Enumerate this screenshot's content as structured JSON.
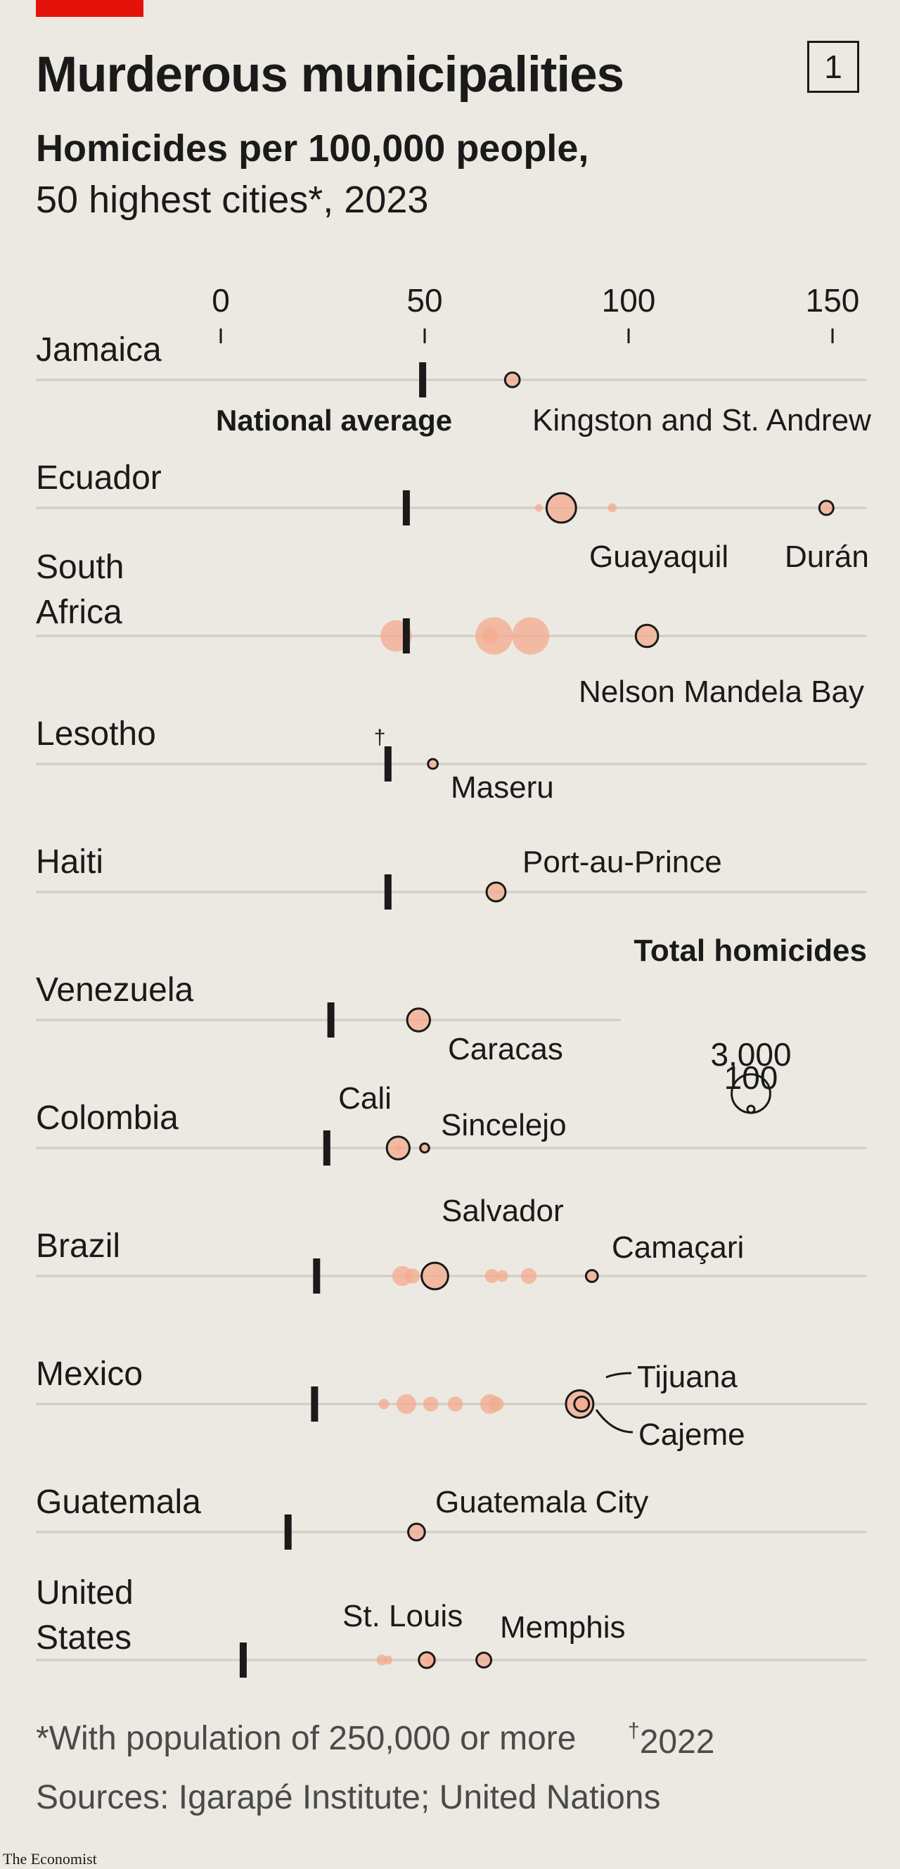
{
  "header": {
    "title": "Murderous municipalities",
    "chart_number": "1",
    "subtitle_bold": "Homicides per 100,000 people,",
    "subtitle_regular": "50 highest cities*, 2023"
  },
  "footer": {
    "footnote": "*With population of 250,000 or more",
    "footnote2_mark": "†",
    "footnote2_text": "2022",
    "sources": "Sources: Igarapé Institute; United Nations",
    "logo": "The Economist"
  },
  "colors": {
    "bubble_fill": "#f4a98e",
    "bubble_stroke": "#1a1a1a",
    "axis_line": "#cfcdc6",
    "national_avg": "#1a1a1a",
    "accent": "#e3120b"
  },
  "chart_data": {
    "type": "scatter",
    "encoding": "bubble size = total homicides; x = homicides per 100,000 people",
    "x_ticks": [
      "0",
      "50",
      "100",
      "150"
    ],
    "xlim": [
      0,
      160
    ],
    "national_average_label": "National average",
    "size_legend": {
      "title": "Total homicides",
      "values": [
        {
          "label": "3,000",
          "value": 3000
        },
        {
          "label": "100",
          "value": 100
        }
      ]
    },
    "countries": [
      {
        "name": "Jamaica",
        "national_avg": 49.5,
        "cities": [
          {
            "x": 71.5,
            "size": 430,
            "highlight": true,
            "label": "Kingston and St. Andrew"
          }
        ]
      },
      {
        "name": "Ecuador",
        "national_avg": 45.5,
        "cities": [
          {
            "x": 78,
            "size": 120
          },
          {
            "x": 96,
            "size": 160
          },
          {
            "x": 83.5,
            "size": 1750,
            "highlight": true,
            "label": "Guayaquil"
          },
          {
            "x": 148.5,
            "size": 400,
            "highlight": true,
            "label": "Durán"
          }
        ]
      },
      {
        "name": "South Africa",
        "national_avg": 45.5,
        "cities": [
          {
            "x": 43,
            "size": 2000
          },
          {
            "x": 67,
            "size": 2800
          },
          {
            "x": 76,
            "size": 2800
          },
          {
            "x": 66,
            "size": 550
          },
          {
            "x": 104.5,
            "size": 1000,
            "highlight": true,
            "label": "Nelson Mandela Bay"
          }
        ]
      },
      {
        "name": "Lesotho",
        "national_avg": 41,
        "national_avg_note": "†",
        "cities": [
          {
            "x": 52,
            "size": 190,
            "highlight": true,
            "label": "Maseru"
          }
        ]
      },
      {
        "name": "Haiti",
        "national_avg": 41,
        "cities": [
          {
            "x": 67.5,
            "size": 720,
            "highlight": true,
            "label": "Port-au-Prince"
          }
        ]
      },
      {
        "name": "Venezuela",
        "national_avg": 27,
        "cities": [
          {
            "x": 48.5,
            "size": 1050,
            "highlight": true,
            "label": "Caracas"
          }
        ]
      },
      {
        "name": "Colombia",
        "national_avg": 26,
        "cities": [
          {
            "x": 43.5,
            "size": 1040,
            "highlight": true,
            "label": "Cali"
          },
          {
            "x": 43.5,
            "size": 90
          },
          {
            "x": 50,
            "size": 160,
            "highlight": true,
            "label": "Sincelejo"
          }
        ]
      },
      {
        "name": "Brazil",
        "national_avg": 23.5,
        "cities": [
          {
            "x": 44.5,
            "size": 800
          },
          {
            "x": 47,
            "size": 460
          },
          {
            "x": 66.5,
            "size": 400
          },
          {
            "x": 69,
            "size": 280
          },
          {
            "x": 75.5,
            "size": 500
          },
          {
            "x": 52.5,
            "size": 1420,
            "highlight": true,
            "label": "Salvador"
          },
          {
            "x": 91,
            "size": 280,
            "highlight": true,
            "label": "Camaçari"
          }
        ]
      },
      {
        "name": "Mexico",
        "national_avg": 23,
        "cities": [
          {
            "x": 40,
            "size": 220
          },
          {
            "x": 45.5,
            "size": 780
          },
          {
            "x": 51.5,
            "size": 460
          },
          {
            "x": 57.5,
            "size": 460
          },
          {
            "x": 66,
            "size": 780
          },
          {
            "x": 67.5,
            "size": 460
          },
          {
            "x": 88,
            "size": 1520,
            "highlight": true,
            "label": "Tijuana"
          },
          {
            "x": 88.5,
            "size": 440,
            "highlight": true,
            "label": "Cajeme"
          }
        ]
      },
      {
        "name": "Guatemala",
        "national_avg": 16.5,
        "cities": [
          {
            "x": 48,
            "size": 560,
            "highlight": true,
            "label": "Guatemala City"
          }
        ]
      },
      {
        "name": "United States",
        "national_avg": 5.5,
        "cities": [
          {
            "x": 39.5,
            "size": 230
          },
          {
            "x": 41,
            "size": 160
          },
          {
            "x": 51.5,
            "size": 290
          },
          {
            "x": 50.5,
            "size": 500,
            "highlight": true,
            "label": "St. Louis"
          },
          {
            "x": 64.5,
            "size": 440,
            "highlight": true,
            "label": "Memphis"
          }
        ]
      }
    ]
  }
}
